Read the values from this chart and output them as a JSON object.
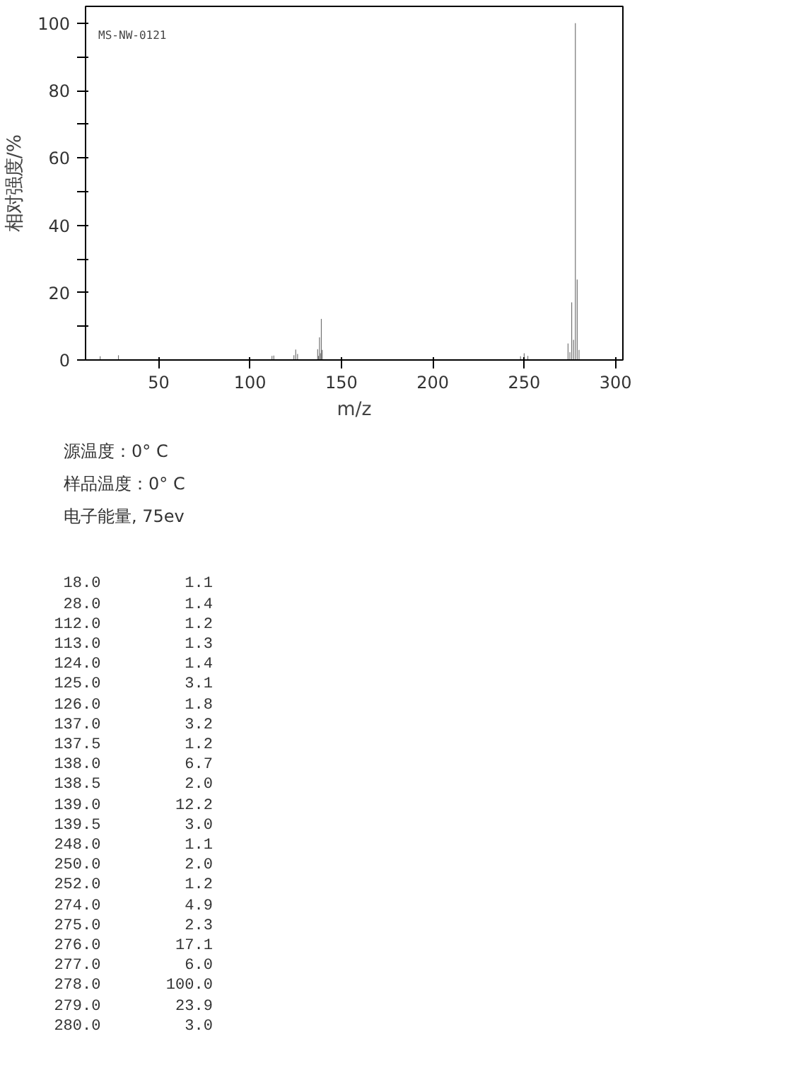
{
  "chart_data": {
    "type": "bar",
    "xlabel": "m/z",
    "ylabel": "相对强度/%",
    "x": [
      18.0,
      28.0,
      112.0,
      113.0,
      124.0,
      125.0,
      126.0,
      137.0,
      137.5,
      138.0,
      138.5,
      139.0,
      139.5,
      248.0,
      250.0,
      252.0,
      274.0,
      275.0,
      276.0,
      277.0,
      278.0,
      279.0,
      280.0
    ],
    "values": [
      1.1,
      1.4,
      1.2,
      1.3,
      1.4,
      3.1,
      1.8,
      3.2,
      1.2,
      6.7,
      2.0,
      12.2,
      3.0,
      1.1,
      2.0,
      1.2,
      4.9,
      2.3,
      17.1,
      6.0,
      100.0,
      23.9,
      3.0
    ],
    "value_labels": [
      "1.1",
      "1.4",
      "1.2",
      "1.3",
      "1.4",
      "3.1",
      "1.8",
      "3.2",
      "1.2",
      "6.7",
      "2.0",
      "12.2",
      "3.0",
      "1.1",
      "2.0",
      "1.2",
      "4.9",
      "2.3",
      "17.1",
      "6.0",
      "100.0",
      "23.9",
      "3.0"
    ],
    "color": "#707070",
    "xlim": [
      10,
      304
    ],
    "ylim": [
      0,
      105
    ],
    "xticks": [
      50,
      100,
      150,
      200,
      250,
      300
    ],
    "yticks": [
      0,
      {
        "value": 10,
        "label": null
      },
      20,
      {
        "value": 30,
        "label": null
      },
      40,
      {
        "value": 50,
        "label": null
      },
      60,
      {
        "value": 70,
        "label": null
      },
      80,
      {
        "value": 90,
        "label": null
      },
      100
    ],
    "grid": false,
    "annotations": [
      "MS-NW-0121",
      "源温度：0° C",
      "样品温度：0° C",
      "电子能量, 75ev",
      "18.0",
      "28.0",
      "112.0",
      "113.0",
      "124.0",
      "125.0",
      "126.0",
      "137.0",
      "137.5",
      "138.0",
      "138.5",
      "139.0",
      "139.5",
      "248.0",
      "250.0",
      "252.0",
      "274.0",
      "275.0",
      "276.0",
      "277.0",
      "278.0",
      "279.0",
      "280.0"
    ]
  }
}
